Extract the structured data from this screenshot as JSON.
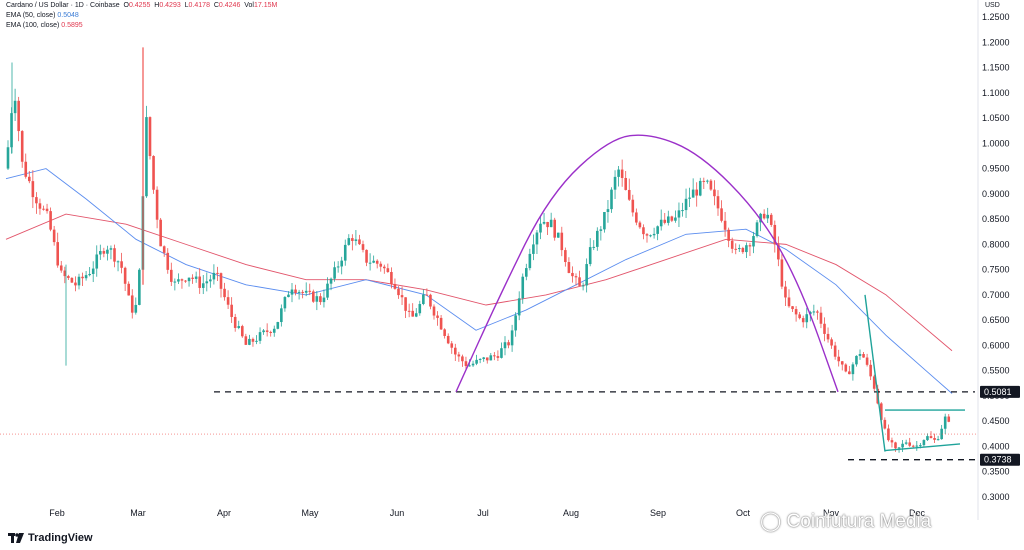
{
  "header": {
    "symbol": "Cardano / US Dollar · 1D · Coinbase",
    "open_label": "O",
    "open": "0.4255",
    "high_label": "H",
    "high": "0.4293",
    "low_label": "L",
    "low": "0.4178",
    "close_label": "C",
    "close": "0.4246",
    "vol_label": "Vol",
    "vol": "17.15M",
    "ema50_label": "EMA (50, close)",
    "ema50_value": "0.5048",
    "ema100_label": "EMA (100, close)",
    "ema100_value": "0.5895",
    "currency": "USD"
  },
  "brand": {
    "logo_text": "TradingView",
    "watermark": "Coinfutura Media"
  },
  "colors": {
    "up": "#26a69a",
    "down": "#ef5350",
    "ema50": "#5b8def",
    "ema100": "#e2556b",
    "arc": "#9b30c9",
    "trend": "#1fa39a"
  },
  "chart_data": {
    "type": "candlestick",
    "x_ticks": [
      "Feb",
      "Mar",
      "Apr",
      "May",
      "Jun",
      "Jul",
      "Aug",
      "Sep",
      "Oct",
      "Nov",
      "Dec"
    ],
    "y_ticks": [
      "1.2500",
      "1.2000",
      "1.1500",
      "1.1000",
      "1.0500",
      "1.0000",
      "0.9500",
      "0.9000",
      "0.8500",
      "0.8000",
      "0.7500",
      "0.7000",
      "0.6500",
      "0.6000",
      "0.5500",
      "0.5000",
      "0.4500",
      "0.4000",
      "0.3500",
      "0.3000"
    ],
    "ylim": [
      0.3,
      1.25
    ],
    "axis_position": "right",
    "grid": false,
    "levels": [
      {
        "value": 0.5081,
        "label": "0.5081",
        "style": "dashed"
      },
      {
        "value": 0.3738,
        "label": "0.3738",
        "style": "dashed"
      }
    ],
    "last_price": 0.4246,
    "path": [
      [
        0,
        0.95
      ],
      [
        8,
        1.12
      ],
      [
        16,
        0.96
      ],
      [
        28,
        0.9
      ],
      [
        42,
        0.85
      ],
      [
        55,
        0.74
      ],
      [
        70,
        0.72
      ],
      [
        85,
        0.75
      ],
      [
        100,
        0.8
      ],
      [
        115,
        0.76
      ],
      [
        125,
        0.67
      ],
      [
        132,
        0.68
      ],
      [
        140,
        1.05
      ],
      [
        148,
        0.9
      ],
      [
        155,
        0.8
      ],
      [
        168,
        0.72
      ],
      [
        182,
        0.74
      ],
      [
        195,
        0.72
      ],
      [
        210,
        0.74
      ],
      [
        225,
        0.66
      ],
      [
        240,
        0.6
      ],
      [
        255,
        0.62
      ],
      [
        270,
        0.64
      ],
      [
        285,
        0.72
      ],
      [
        300,
        0.7
      ],
      [
        315,
        0.69
      ],
      [
        330,
        0.75
      ],
      [
        345,
        0.82
      ],
      [
        360,
        0.77
      ],
      [
        375,
        0.76
      ],
      [
        390,
        0.72
      ],
      [
        405,
        0.65
      ],
      [
        420,
        0.7
      ],
      [
        435,
        0.64
      ],
      [
        450,
        0.58
      ],
      [
        462,
        0.56
      ],
      [
        475,
        0.57
      ],
      [
        490,
        0.58
      ],
      [
        505,
        0.61
      ],
      [
        515,
        0.72
      ],
      [
        525,
        0.8
      ],
      [
        535,
        0.85
      ],
      [
        545,
        0.84
      ],
      [
        555,
        0.8
      ],
      [
        565,
        0.74
      ],
      [
        575,
        0.71
      ],
      [
        585,
        0.79
      ],
      [
        600,
        0.86
      ],
      [
        612,
        0.95
      ],
      [
        625,
        0.87
      ],
      [
        640,
        0.82
      ],
      [
        655,
        0.84
      ],
      [
        670,
        0.85
      ],
      [
        685,
        0.9
      ],
      [
        700,
        0.92
      ],
      [
        715,
        0.86
      ],
      [
        730,
        0.78
      ],
      [
        745,
        0.81
      ],
      [
        760,
        0.87
      ],
      [
        770,
        0.79
      ],
      [
        780,
        0.68
      ],
      [
        795,
        0.65
      ],
      [
        810,
        0.67
      ],
      [
        825,
        0.6
      ],
      [
        840,
        0.54
      ],
      [
        855,
        0.59
      ],
      [
        868,
        0.52
      ],
      [
        880,
        0.42
      ],
      [
        890,
        0.39
      ],
      [
        900,
        0.41
      ],
      [
        910,
        0.4
      ],
      [
        920,
        0.42
      ],
      [
        930,
        0.41
      ],
      [
        940,
        0.46
      ],
      [
        946,
        0.4246
      ]
    ],
    "ema50": [
      [
        0,
        0.93
      ],
      [
        40,
        0.95
      ],
      [
        80,
        0.89
      ],
      [
        130,
        0.81
      ],
      [
        180,
        0.76
      ],
      [
        240,
        0.72
      ],
      [
        300,
        0.7
      ],
      [
        360,
        0.73
      ],
      [
        420,
        0.7
      ],
      [
        470,
        0.63
      ],
      [
        520,
        0.67
      ],
      [
        570,
        0.72
      ],
      [
        620,
        0.77
      ],
      [
        680,
        0.82
      ],
      [
        740,
        0.83
      ],
      [
        780,
        0.79
      ],
      [
        830,
        0.72
      ],
      [
        880,
        0.62
      ],
      [
        920,
        0.55
      ],
      [
        946,
        0.5048
      ]
    ],
    "ema100": [
      [
        0,
        0.81
      ],
      [
        60,
        0.86
      ],
      [
        120,
        0.84
      ],
      [
        180,
        0.8
      ],
      [
        240,
        0.76
      ],
      [
        300,
        0.73
      ],
      [
        360,
        0.73
      ],
      [
        420,
        0.71
      ],
      [
        480,
        0.68
      ],
      [
        540,
        0.7
      ],
      [
        600,
        0.73
      ],
      [
        660,
        0.77
      ],
      [
        720,
        0.81
      ],
      [
        780,
        0.8
      ],
      [
        830,
        0.76
      ],
      [
        880,
        0.7
      ],
      [
        946,
        0.5895
      ]
    ],
    "arc": [
      [
        456,
        0.5081
      ],
      [
        500,
        0.7
      ],
      [
        550,
        0.9
      ],
      [
        610,
        1.01
      ],
      [
        650,
        1.02
      ],
      [
        700,
        0.98
      ],
      [
        760,
        0.86
      ],
      [
        800,
        0.72
      ],
      [
        838,
        0.5081
      ]
    ],
    "trendlines": [
      [
        [
          865,
          0.7
        ],
        [
          885,
          0.39
        ]
      ],
      [
        [
          885,
          0.392
        ],
        [
          960,
          0.405
        ]
      ],
      [
        [
          885,
          0.472
        ],
        [
          965,
          0.472
        ]
      ]
    ]
  }
}
